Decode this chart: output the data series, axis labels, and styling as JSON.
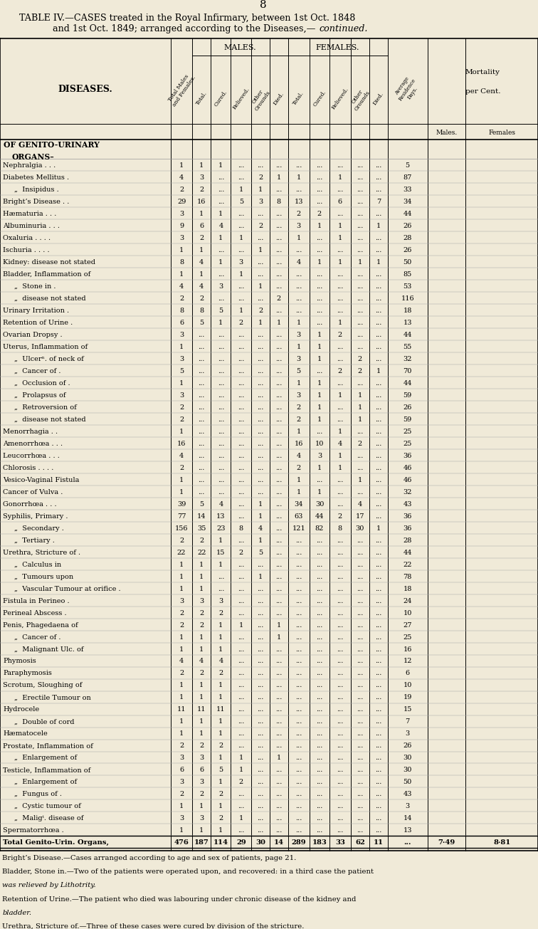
{
  "page_number": "8",
  "title_line1": "TABLE IV.—CASES treated in the Royal Infirmary, between 1st Oct. 1848",
  "title_line2": "and 1st Oct. 1849; arranged according to the Diseases,—",
  "title_italic": "continued.",
  "bg_color": "#f0ead8",
  "rows": [
    [
      "Nephralgia . . .",
      "1",
      "1",
      "1",
      "...",
      "...",
      "...",
      "...",
      "...",
      "...",
      "...",
      "...",
      "5",
      "",
      ""
    ],
    [
      "Diabetes Mellitus .",
      "4",
      "3",
      "...",
      "...",
      "2",
      "1",
      "1",
      "...",
      "1",
      "...",
      "...",
      "87",
      "",
      ""
    ],
    [
      "„  Insipidus .",
      "2",
      "2",
      "...",
      "1",
      "1",
      "...",
      "...",
      "...",
      "...",
      "...",
      "...",
      "33",
      "",
      ""
    ],
    [
      "Bright’s Disease . .",
      "29",
      "16",
      "...",
      "5",
      "3",
      "8",
      "13",
      "...",
      "6",
      "...",
      "7",
      "34",
      "",
      ""
    ],
    [
      "Hæmaturia . . .",
      "3",
      "1",
      "1",
      "...",
      "...",
      "...",
      "2",
      "2",
      "...",
      "...",
      "...",
      "44",
      "",
      ""
    ],
    [
      "Albuminuria . . .",
      "9",
      "6",
      "4",
      "...",
      "2",
      "...",
      "3",
      "1",
      "1",
      "...",
      "1",
      "26",
      "",
      ""
    ],
    [
      "Oxaluria . . . .",
      "3",
      "2",
      "1",
      "1",
      "...",
      "...",
      "1",
      "...",
      "1",
      "...",
      "...",
      "28",
      "",
      ""
    ],
    [
      "Ischuria . . . .",
      "1",
      "1",
      "...",
      "...",
      "1",
      "...",
      "...",
      "...",
      "...",
      "...",
      "...",
      "26",
      "",
      ""
    ],
    [
      "Kidney: disease not stated",
      "8",
      "4",
      "1",
      "3",
      "...",
      "...",
      "4",
      "1",
      "1",
      "1",
      "1",
      "50",
      "",
      ""
    ],
    [
      "Bladder, Inflammation of",
      "1",
      "1",
      "...",
      "1",
      "...",
      "...",
      "...",
      "...",
      "...",
      "...",
      "...",
      "85",
      "",
      ""
    ],
    [
      "„  Stone in . ",
      "4",
      "4",
      "3",
      "...",
      "1",
      "...",
      "...",
      "...",
      "...",
      "...",
      "...",
      "53",
      "",
      ""
    ],
    [
      "„  disease not stated",
      "2",
      "2",
      "...",
      "...",
      "...",
      "2",
      "...",
      "...",
      "...",
      "...",
      "...",
      "116",
      "",
      ""
    ],
    [
      "Urinary Irritation .",
      "8",
      "8",
      "5",
      "1",
      "2",
      "...",
      "...",
      "...",
      "...",
      "...",
      "...",
      "18",
      "",
      ""
    ],
    [
      "Retention of Urine .",
      "6",
      "5",
      "1",
      "2",
      "1",
      "1",
      "1",
      "...",
      "1",
      "...",
      "...",
      "13",
      "",
      ""
    ],
    [
      "Ovarian Dropsy .",
      "3",
      "...",
      "...",
      "...",
      "...",
      "...",
      "3",
      "1",
      "2",
      "...",
      "...",
      "44",
      "",
      ""
    ],
    [
      "Uterus, Inflammation of",
      "1",
      "...",
      "...",
      "...",
      "...",
      "...",
      "1",
      "1",
      "...",
      "...",
      "...",
      "55",
      "",
      ""
    ],
    [
      "„  Ulcerⁿ. of neck of",
      "3",
      "...",
      "...",
      "...",
      "...",
      "...",
      "3",
      "1",
      "...",
      "2",
      "...",
      "32",
      "",
      ""
    ],
    [
      "„  Cancer of . ",
      "5",
      "...",
      "...",
      "...",
      "...",
      "...",
      "5",
      "...",
      "2",
      "2",
      "1",
      "70",
      "",
      ""
    ],
    [
      "„  Occlusion of . ",
      "1",
      "...",
      "...",
      "...",
      "...",
      "...",
      "1",
      "1",
      "...",
      "...",
      "...",
      "44",
      "",
      ""
    ],
    [
      "„  Prolapsus of",
      "3",
      "...",
      "...",
      "...",
      "...",
      "...",
      "3",
      "1",
      "1",
      "1",
      "...",
      "59",
      "",
      ""
    ],
    [
      "„  Retroversion of",
      "2",
      "...",
      "...",
      "...",
      "...",
      "...",
      "2",
      "1",
      "...",
      "1",
      "...",
      "26",
      "",
      ""
    ],
    [
      "„  disease not stated",
      "2",
      "...",
      "...",
      "...",
      "...",
      "...",
      "2",
      "1",
      "...",
      "1",
      "...",
      "59",
      "",
      ""
    ],
    [
      "Menorrhagia . .",
      "1",
      "...",
      "...",
      "...",
      "...",
      "...",
      "1",
      "...",
      "1",
      "...",
      "...",
      "25",
      "",
      ""
    ],
    [
      "Amenorrhœa . . .",
      "16",
      "...",
      "...",
      "...",
      "...",
      "...",
      "16",
      "10",
      "4",
      "2",
      "...",
      "25",
      "",
      ""
    ],
    [
      "Leucorrhœa . . .",
      "4",
      "...",
      "...",
      "...",
      "...",
      "...",
      "4",
      "3",
      "1",
      "...",
      "...",
      "36",
      "",
      ""
    ],
    [
      "Chlorosis . . . .",
      "2",
      "...",
      "...",
      "...",
      "...",
      "...",
      "2",
      "1",
      "1",
      "...",
      "...",
      "46",
      "",
      ""
    ],
    [
      "Vesico-Vaginal Fistula",
      "1",
      "...",
      "...",
      "...",
      "...",
      "...",
      "1",
      "...",
      "...",
      "1",
      "...",
      "46",
      "",
      ""
    ],
    [
      "Cancer of Vulva .",
      "1",
      "...",
      "...",
      "...",
      "...",
      "...",
      "1",
      "1",
      "...",
      "...",
      "...",
      "32",
      "",
      ""
    ],
    [
      "Gonorrhœa . . .",
      "39",
      "5",
      "4",
      "...",
      "1",
      "...",
      "34",
      "30",
      "...",
      "4",
      "...",
      "43",
      "",
      ""
    ],
    [
      "Syphilis, Primary . ",
      "77",
      "14",
      "13",
      "...",
      "1",
      "...",
      "63",
      "44",
      "2",
      "17",
      "...",
      "36",
      "",
      ""
    ],
    [
      "„  Secondary . ",
      "156",
      "35",
      "23",
      "8",
      "4",
      "...",
      "121",
      "82",
      "8",
      "30",
      "1",
      "36",
      "",
      ""
    ],
    [
      "„  Tertiary . ",
      "2",
      "2",
      "1",
      "...",
      "1",
      "...",
      "...",
      "...",
      "...",
      "...",
      "...",
      "28",
      "",
      ""
    ],
    [
      "Urethra, Stricture of . ",
      "22",
      "22",
      "15",
      "2",
      "5",
      "...",
      "...",
      "...",
      "...",
      "...",
      "...",
      "44",
      "",
      ""
    ],
    [
      "„  Calculus in",
      "1",
      "1",
      "1",
      "...",
      "...",
      "...",
      "...",
      "...",
      "...",
      "...",
      "...",
      "22",
      "",
      ""
    ],
    [
      "„  Tumours upon",
      "1",
      "1",
      "...",
      "...",
      "1",
      "...",
      "...",
      "...",
      "...",
      "...",
      "...",
      "78",
      "",
      ""
    ],
    [
      "„  Vascular Tumour at orifice .",
      "1",
      "1",
      "...",
      "...",
      "...",
      "...",
      "...",
      "...",
      "...",
      "...",
      "...",
      "18",
      "",
      ""
    ],
    [
      "Fistula in Perineo .",
      "3",
      "3",
      "3",
      "...",
      "...",
      "...",
      "...",
      "...",
      "...",
      "...",
      "...",
      "24",
      "",
      ""
    ],
    [
      "Perineal Abscess . ",
      "2",
      "2",
      "2",
      "...",
      "...",
      "...",
      "...",
      "...",
      "...",
      "...",
      "...",
      "10",
      "",
      ""
    ],
    [
      "Penis, Phagedaena of",
      "2",
      "2",
      "1",
      "1",
      "...",
      "1",
      "...",
      "...",
      "...",
      "...",
      "...",
      "27",
      "",
      ""
    ],
    [
      "„  Cancer of . ",
      "1",
      "1",
      "1",
      "...",
      "...",
      "1",
      "...",
      "...",
      "...",
      "...",
      "...",
      "25",
      "",
      ""
    ],
    [
      "„  Malignant Ulc. of",
      "1",
      "1",
      "1",
      "...",
      "...",
      "...",
      "...",
      "...",
      "...",
      "...",
      "...",
      "16",
      "",
      ""
    ],
    [
      "Phymosis",
      "4",
      "4",
      "4",
      "...",
      "...",
      "...",
      "...",
      "...",
      "...",
      "...",
      "...",
      "12",
      "",
      ""
    ],
    [
      "Paraphymosis",
      "2",
      "2",
      "2",
      "...",
      "...",
      "...",
      "...",
      "...",
      "...",
      "...",
      "...",
      "6",
      "",
      ""
    ],
    [
      "Scrotum, Sloughing of",
      "1",
      "1",
      "1",
      "...",
      "...",
      "...",
      "...",
      "...",
      "...",
      "...",
      "...",
      "10",
      "",
      ""
    ],
    [
      "„  Erectile Tumour on",
      "1",
      "1",
      "1",
      "...",
      "...",
      "...",
      "...",
      "...",
      "...",
      "...",
      "...",
      "19",
      "",
      ""
    ],
    [
      "Hydrocele",
      "11",
      "11",
      "11",
      "...",
      "...",
      "...",
      "...",
      "...",
      "...",
      "...",
      "...",
      "15",
      "",
      ""
    ],
    [
      "„  Double of cord",
      "1",
      "1",
      "1",
      "...",
      "...",
      "...",
      "...",
      "...",
      "...",
      "...",
      "...",
      "7",
      "",
      ""
    ],
    [
      "Hæmatocele",
      "1",
      "1",
      "1",
      "...",
      "...",
      "...",
      "...",
      "...",
      "...",
      "...",
      "...",
      "3",
      "",
      ""
    ],
    [
      "Prostate, Inflammation of",
      "2",
      "2",
      "2",
      "...",
      "...",
      "...",
      "...",
      "...",
      "...",
      "...",
      "...",
      "26",
      "",
      ""
    ],
    [
      "„  Enlargement of",
      "3",
      "3",
      "1",
      "1",
      "...",
      "1",
      "...",
      "...",
      "...",
      "...",
      "...",
      "30",
      "",
      ""
    ],
    [
      "Testicle, Inflammation of",
      "6",
      "6",
      "5",
      "1",
      "...",
      "...",
      "...",
      "...",
      "...",
      "...",
      "...",
      "30",
      "",
      ""
    ],
    [
      "„  Enlargement of",
      "3",
      "3",
      "1",
      "2",
      "...",
      "...",
      "...",
      "...",
      "...",
      "...",
      "...",
      "50",
      "",
      ""
    ],
    [
      "„  Fungus of . ",
      "2",
      "2",
      "2",
      "...",
      "...",
      "...",
      "...",
      "...",
      "...",
      "...",
      "...",
      "43",
      "",
      ""
    ],
    [
      "„  Cystic tumour of",
      "1",
      "1",
      "1",
      "...",
      "...",
      "...",
      "...",
      "...",
      "...",
      "...",
      "...",
      "3",
      "",
      ""
    ],
    [
      "„  Maligᵗ. disease of",
      "3",
      "3",
      "2",
      "1",
      "...",
      "...",
      "...",
      "...",
      "...",
      "...",
      "...",
      "14",
      "",
      ""
    ],
    [
      "Spermatorrhœa . ",
      "1",
      "1",
      "1",
      "...",
      "...",
      "...",
      "...",
      "...",
      "...",
      "...",
      "...",
      "13",
      "",
      ""
    ],
    [
      "Total Genito-Urin. Organs,",
      "476",
      "187",
      "114",
      "29",
      "30",
      "14",
      "289",
      "183",
      "33",
      "62",
      "11",
      "...",
      "7·49",
      "8·81"
    ]
  ],
  "indented_labels": [
    "„"
  ],
  "footnotes": [
    "Bright’s Disease.—Cases arranged according to age and sex of patients, page 21.",
    "Bladder, Stone in.—Two of the patients were operated upon, and recovered: in a third case the patient",
    "    was relieved by Lithotrity.",
    "Retention of Urine.—The patient who died was labouring under chronic disease of the kidney and",
    "    bladder.",
    "Urethra, Stricture of.—Three of these cases were cured by division of the stricture."
  ]
}
